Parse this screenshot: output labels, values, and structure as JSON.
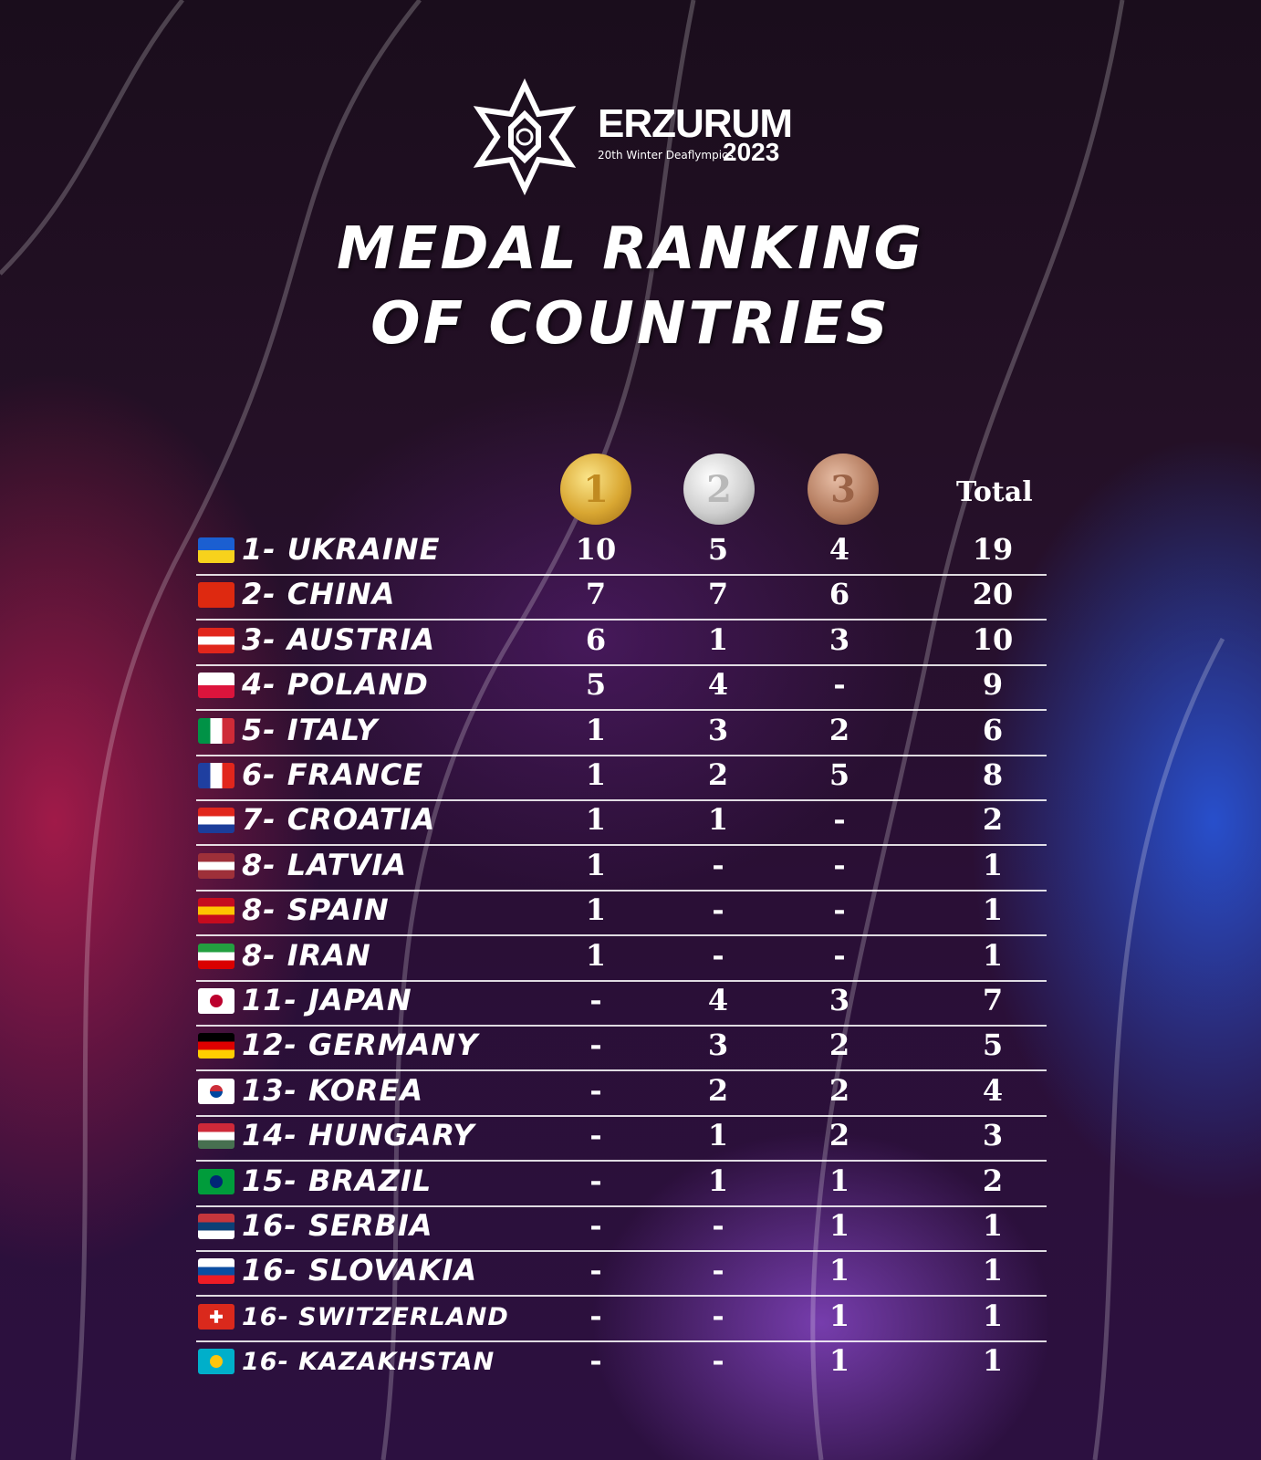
{
  "logo": {
    "name": "ERZURUM",
    "subtitle": "20th Winter Deaflympics",
    "year": "2023",
    "icon": "snowflake-icon"
  },
  "title": {
    "line1": "MEDAL RANKING",
    "line2": "OF COUNTRIES"
  },
  "header": {
    "gold_icon": "gold-medal-icon",
    "gold_label": "1",
    "silver_icon": "silver-medal-icon",
    "silver_label": "2",
    "bronze_icon": "bronze-medal-icon",
    "bronze_label": "3",
    "total": "Total"
  },
  "rows": [
    {
      "name": "1- UKRAINE",
      "flag": "ukraine-flag-icon",
      "colors": [
        "#1b5fd1",
        "#f7d21c"
      ],
      "gold": "10",
      "silver": "5",
      "bronze": "4",
      "total": "19"
    },
    {
      "name": "2- CHINA",
      "flag": "china-flag-icon",
      "colors": [
        "#de2910",
        "#de2910"
      ],
      "gold": "7",
      "silver": "7",
      "bronze": "6",
      "total": "20"
    },
    {
      "name": "3- AUSTRIA",
      "flag": "austria-flag-icon",
      "colors": [
        "#e1261c",
        "#ffffff",
        "#e1261c"
      ],
      "gold": "6",
      "silver": "1",
      "bronze": "3",
      "total": "10"
    },
    {
      "name": "4- POLAND",
      "flag": "poland-flag-icon",
      "colors": [
        "#ffffff",
        "#dc143c"
      ],
      "gold": "5",
      "silver": "4",
      "bronze": "-",
      "total": "9"
    },
    {
      "name": "5- ITALY",
      "flag": "italy-flag-icon",
      "colors": [
        "#009246",
        "#ffffff",
        "#ce2b37"
      ],
      "vertical": true,
      "gold": "1",
      "silver": "3",
      "bronze": "2",
      "total": "6"
    },
    {
      "name": "6- FRANCE",
      "flag": "france-flag-icon",
      "colors": [
        "#1f3fa0",
        "#ffffff",
        "#e1261c"
      ],
      "vertical": true,
      "gold": "1",
      "silver": "2",
      "bronze": "5",
      "total": "8"
    },
    {
      "name": "7- CROATIA",
      "flag": "croatia-flag-icon",
      "colors": [
        "#e1261c",
        "#ffffff",
        "#1b3d9a"
      ],
      "gold": "1",
      "silver": "1",
      "bronze": "-",
      "total": "2"
    },
    {
      "name": "8- LATVIA",
      "flag": "latvia-flag-icon",
      "colors": [
        "#9e3039",
        "#ffffff",
        "#9e3039"
      ],
      "gold": "1",
      "silver": "-",
      "bronze": "-",
      "total": "1"
    },
    {
      "name": "8- SPAIN",
      "flag": "spain-flag-icon",
      "colors": [
        "#c60b1e",
        "#ffc400",
        "#c60b1e"
      ],
      "gold": "1",
      "silver": "-",
      "bronze": "-",
      "total": "1"
    },
    {
      "name": "8- IRAN",
      "flag": "iran-flag-icon",
      "colors": [
        "#239f40",
        "#ffffff",
        "#da0000"
      ],
      "gold": "1",
      "silver": "-",
      "bronze": "-",
      "total": "1"
    },
    {
      "name": "11- JAPAN",
      "flag": "japan-flag-icon",
      "colors": [
        "#ffffff",
        "#ffffff"
      ],
      "gold": "-",
      "silver": "4",
      "bronze": "3",
      "total": "7"
    },
    {
      "name": "12- GERMANY",
      "flag": "germany-flag-icon",
      "colors": [
        "#000000",
        "#dd0000",
        "#ffce00"
      ],
      "gold": "-",
      "silver": "3",
      "bronze": "2",
      "total": "5"
    },
    {
      "name": "13- KOREA",
      "flag": "korea-flag-icon",
      "colors": [
        "#ffffff",
        "#ffffff"
      ],
      "gold": "-",
      "silver": "2",
      "bronze": "2",
      "total": "4"
    },
    {
      "name": "14- HUNGARY",
      "flag": "hungary-flag-icon",
      "colors": [
        "#ce2939",
        "#ffffff",
        "#477050"
      ],
      "gold": "-",
      "silver": "1",
      "bronze": "2",
      "total": "3"
    },
    {
      "name": "15- BRAZIL",
      "flag": "brazil-flag-icon",
      "colors": [
        "#009c3b",
        "#009c3b"
      ],
      "gold": "-",
      "silver": "1",
      "bronze": "1",
      "total": "2"
    },
    {
      "name": "16- SERBIA",
      "flag": "serbia-flag-icon",
      "colors": [
        "#c6363c",
        "#0c4076",
        "#ffffff"
      ],
      "gold": "-",
      "silver": "-",
      "bronze": "1",
      "total": "1"
    },
    {
      "name": "16- SLOVAKIA",
      "flag": "slovakia-flag-icon",
      "colors": [
        "#ffffff",
        "#0b4ea2",
        "#ee1c25"
      ],
      "gold": "-",
      "silver": "-",
      "bronze": "1",
      "total": "1"
    },
    {
      "name": "16- SWITZERLAND",
      "flag": "switzerland-flag-icon",
      "colors": [
        "#da291c",
        "#da291c"
      ],
      "small": true,
      "gold": "-",
      "silver": "-",
      "bronze": "1",
      "total": "1"
    },
    {
      "name": "16- KAZAKHSTAN",
      "flag": "kazakhstan-flag-icon",
      "colors": [
        "#00afca",
        "#00afca"
      ],
      "small": true,
      "gold": "-",
      "silver": "-",
      "bronze": "1",
      "total": "1"
    }
  ]
}
